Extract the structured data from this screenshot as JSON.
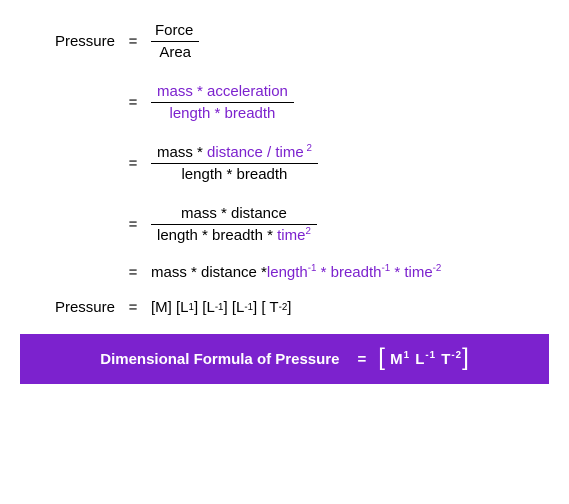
{
  "colors": {
    "accent": "#7c22ce",
    "text": "#000000",
    "result_bg": "#7c22ce",
    "result_text": "#ffffff"
  },
  "labels": {
    "pressure": "Pressure",
    "equals": "="
  },
  "step1": {
    "num": "Force",
    "den": "Area"
  },
  "step2": {
    "num_a": "mass ",
    "num_b": " * acceleration",
    "den": "length * breadth"
  },
  "step3": {
    "num_a": "mass  * ",
    "num_b": "distance / time",
    "exp": " 2",
    "den": "length * breadth"
  },
  "step4": {
    "num": "mass * distance",
    "den_a": "length * breadth * ",
    "den_b": "time",
    "exp": "2"
  },
  "step5": {
    "a": "mass * distance * ",
    "b": "length",
    "e1": "-1",
    "c": " * breadth",
    "e2": "-1",
    "d": " * time",
    "e3": "-2"
  },
  "step6": {
    "text": "[M] [L",
    "e1": "1",
    "t2": " ] [L",
    "e2": "-1",
    "t3": " ] [L",
    "e3": "-1",
    "t4": " ] [ T",
    "e4": " -2",
    "t5": " ]"
  },
  "result": {
    "label": "Dimensional Formula of Pressure",
    "m": "M",
    "m_e": "1",
    "l": " L",
    "l_e": "-1",
    "t": " T",
    "t_e": "-2"
  }
}
